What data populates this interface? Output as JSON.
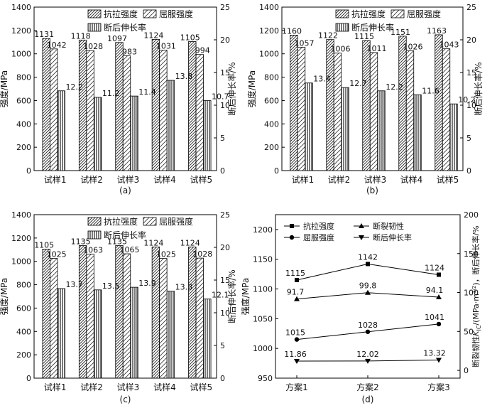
{
  "chart_data": [
    {
      "type": "bar",
      "panel_label": "(a)",
      "categories": [
        "试样1",
        "试样2",
        "试样3",
        "试样4",
        "试样5"
      ],
      "ylabel": "强度/MPa",
      "y2label": "断后伸长率/%",
      "ylim": [
        0,
        1400
      ],
      "yticks": [
        0,
        200,
        400,
        600,
        800,
        1000,
        1200,
        1400
      ],
      "y2lim": [
        0,
        25
      ],
      "y2ticks": [
        0,
        5,
        10,
        15,
        20,
        25
      ],
      "legend_position": "top-right",
      "series": [
        {
          "name": "抗拉强度",
          "axis": "left",
          "values": [
            1131,
            1118,
            1097,
            1124,
            1105
          ],
          "labels": [
            "1131",
            "1118",
            "1097",
            "1124",
            "1105"
          ]
        },
        {
          "name": "屈服强度",
          "axis": "left",
          "values": [
            1042,
            1028,
            983,
            1031,
            994
          ],
          "labels": [
            "1042",
            "1028",
            "983",
            "1031",
            "994"
          ]
        },
        {
          "name": "断后伸长率",
          "axis": "right",
          "values": [
            12.2,
            11.2,
            11.4,
            13.8,
            10.7
          ],
          "labels": [
            "12.2",
            "11.2",
            "11.4",
            "13.8",
            "10.7"
          ]
        }
      ]
    },
    {
      "type": "bar",
      "panel_label": "(b)",
      "categories": [
        "试样1",
        "试样2",
        "试样3",
        "试样4",
        "试样5"
      ],
      "ylabel": "强度/MPa",
      "y2label": "断后伸长率/%",
      "ylim": [
        0,
        1400
      ],
      "yticks": [
        0,
        200,
        400,
        600,
        800,
        1000,
        1200,
        1400
      ],
      "y2lim": [
        0,
        25
      ],
      "y2ticks": [
        0,
        5,
        10,
        15,
        20,
        25
      ],
      "legend_position": "top-right",
      "series": [
        {
          "name": "抗拉强度",
          "axis": "left",
          "values": [
            1160,
            1122,
            1115,
            1151,
            1163
          ],
          "labels": [
            "1160",
            "1122",
            "1115",
            "1151",
            "1163"
          ]
        },
        {
          "name": "屈服强度",
          "axis": "left",
          "values": [
            1057,
            1006,
            1011,
            1026,
            1043
          ],
          "labels": [
            "1057",
            "1006",
            "1011",
            "1026",
            "1043"
          ]
        },
        {
          "name": "断后伸长率",
          "axis": "right",
          "values": [
            13.4,
            12.7,
            12.2,
            11.6,
            10.2
          ],
          "labels": [
            "13.4",
            "12.7",
            "12.2",
            "11.6",
            "10.2"
          ]
        }
      ]
    },
    {
      "type": "bar",
      "panel_label": "(c)",
      "categories": [
        "试样1",
        "试样2",
        "试样3",
        "试样4",
        "试样5"
      ],
      "ylabel": "强度/MPa",
      "y2label": "断后伸长率/%",
      "ylim": [
        0,
        1400
      ],
      "yticks": [
        0,
        200,
        400,
        600,
        800,
        1000,
        1200,
        1400
      ],
      "y2lim": [
        0,
        25
      ],
      "y2ticks": [
        0,
        5,
        10,
        15,
        20,
        25
      ],
      "legend_position": "top-right",
      "series": [
        {
          "name": "抗拉强度",
          "axis": "left",
          "values": [
            1105,
            1135,
            1135,
            1124,
            1124
          ],
          "labels": [
            "1105",
            "1135",
            "1135",
            "1124",
            "1124"
          ]
        },
        {
          "name": "屈服强度",
          "axis": "left",
          "values": [
            1025,
            1063,
            1065,
            1025,
            1028
          ],
          "labels": [
            "1025",
            "1063",
            "1065",
            "1025",
            "1028"
          ]
        },
        {
          "name": "断后伸长率",
          "axis": "right",
          "values": [
            13.7,
            13.5,
            13.9,
            13.3,
            12.1
          ],
          "labels": [
            "13.7",
            "13.5",
            "13.9",
            "13.3",
            "12.1"
          ]
        }
      ]
    },
    {
      "type": "line",
      "panel_label": "(d)",
      "categories": [
        "方案1",
        "方案2",
        "方案3"
      ],
      "ylabel": "强度/MPa",
      "y2label": "断裂韧性K_IC/(MPa·m^1/2)，断后伸长率/%",
      "y2label_parts": {
        "prefix": "断裂韧性",
        "symbol": "K",
        "subscript": "IC",
        "unit_open": "/(MPa·m",
        "superscript": "1/2",
        "tail": ")，断后伸长率/%"
      },
      "ylim": [
        950,
        1225
      ],
      "yticks": [
        950,
        1000,
        1050,
        1100,
        1150,
        1200
      ],
      "y2lim": [
        -10,
        200
      ],
      "y2ticks": [
        0,
        50,
        100,
        150,
        200
      ],
      "legend_position": "top-left",
      "series": [
        {
          "name": "抗拉强度",
          "axis": "left",
          "marker": "square",
          "values": [
            1115,
            1142,
            1124
          ],
          "labels": [
            "1115",
            "1142",
            "1124"
          ]
        },
        {
          "name": "屈服强度",
          "axis": "left",
          "marker": "circle",
          "values": [
            1015,
            1028,
            1041
          ],
          "labels": [
            "1015",
            "1028",
            "1041"
          ]
        },
        {
          "name": "断裂韧性",
          "axis": "right",
          "marker": "triangle-up",
          "values": [
            91.7,
            99.8,
            94.1
          ],
          "labels": [
            "91.7",
            "99.8",
            "94.1"
          ]
        },
        {
          "name": "断后伸长率",
          "axis": "right",
          "marker": "triangle-down",
          "values": [
            11.86,
            12.02,
            13.32
          ],
          "labels": [
            "11.86",
            "12.02",
            "13.32"
          ]
        }
      ]
    }
  ]
}
